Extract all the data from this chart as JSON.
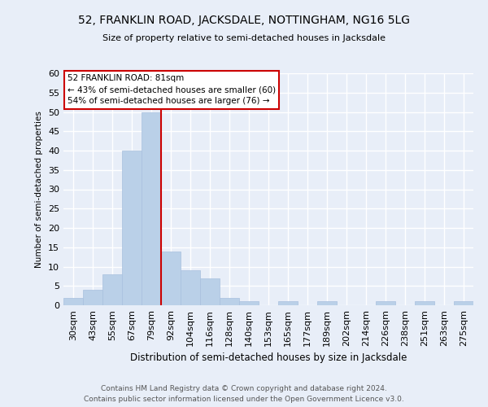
{
  "title": "52, FRANKLIN ROAD, JACKSDALE, NOTTINGHAM, NG16 5LG",
  "subtitle": "Size of property relative to semi-detached houses in Jacksdale",
  "xlabel": "Distribution of semi-detached houses by size in Jacksdale",
  "ylabel": "Number of semi-detached properties",
  "footer_line1": "Contains HM Land Registry data © Crown copyright and database right 2024.",
  "footer_line2": "Contains public sector information licensed under the Open Government Licence v3.0.",
  "bar_labels": [
    "30sqm",
    "43sqm",
    "55sqm",
    "67sqm",
    "79sqm",
    "92sqm",
    "104sqm",
    "116sqm",
    "128sqm",
    "140sqm",
    "153sqm",
    "165sqm",
    "177sqm",
    "189sqm",
    "202sqm",
    "214sqm",
    "226sqm",
    "238sqm",
    "251sqm",
    "263sqm",
    "275sqm"
  ],
  "bar_values": [
    2,
    4,
    8,
    40,
    50,
    14,
    9,
    7,
    2,
    1,
    0,
    1,
    0,
    1,
    0,
    0,
    1,
    0,
    1,
    0,
    1
  ],
  "bar_color": "#bad0e8",
  "bar_edge_color": "#a8c0de",
  "background_color": "#e8eef8",
  "grid_color": "#ffffff",
  "annotation_text": "52 FRANKLIN ROAD: 81sqm\n← 43% of semi-detached houses are smaller (60)\n54% of semi-detached houses are larger (76) →",
  "annotation_box_color": "#ffffff",
  "annotation_box_edge": "#cc0000",
  "vline_x": 4.5,
  "vline_color": "#cc0000",
  "ylim": [
    0,
    60
  ],
  "yticks": [
    0,
    5,
    10,
    15,
    20,
    25,
    30,
    35,
    40,
    45,
    50,
    55,
    60
  ]
}
